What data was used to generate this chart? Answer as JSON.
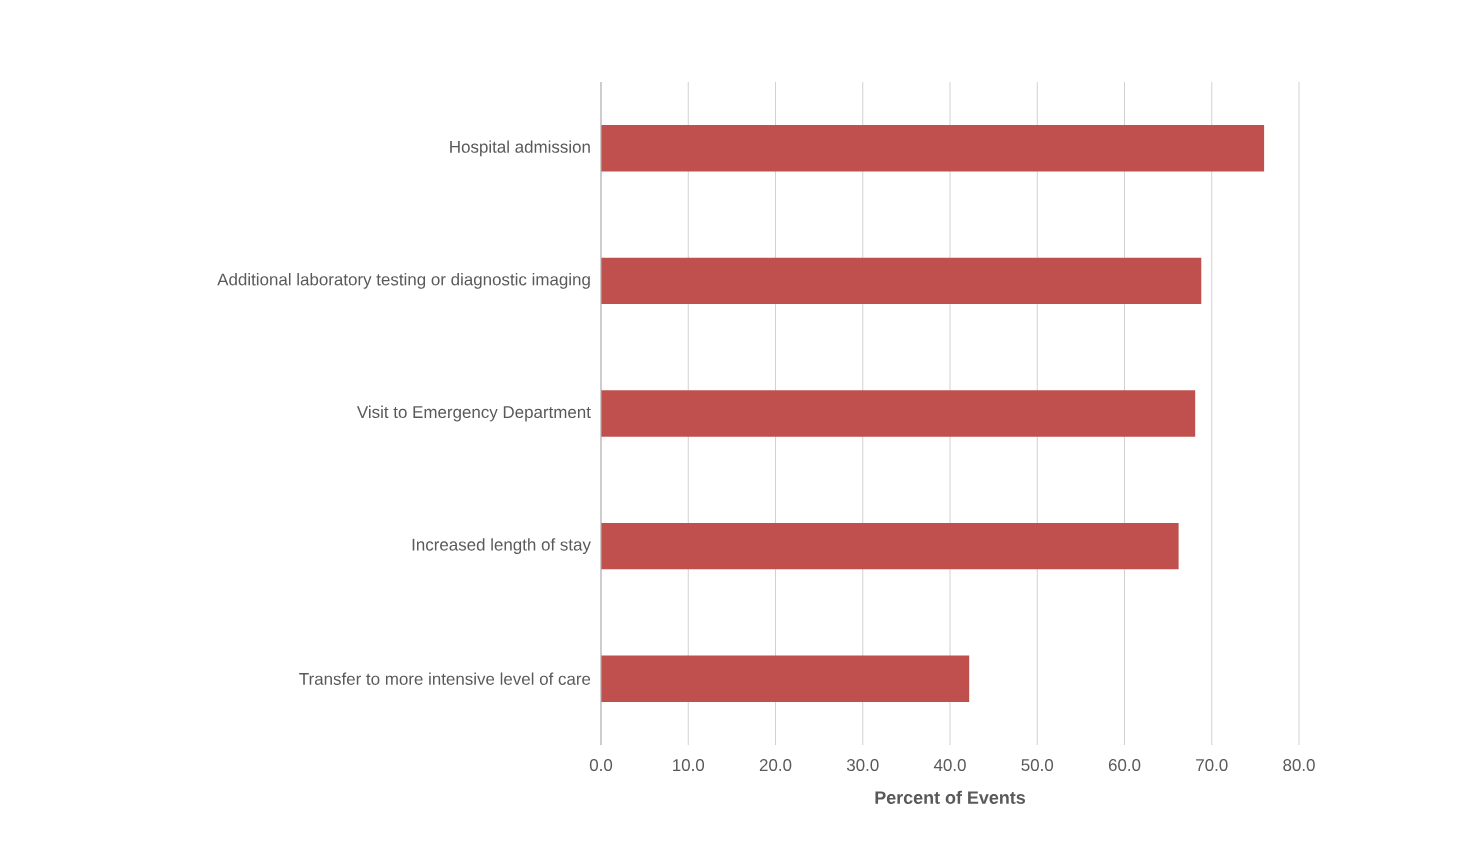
{
  "chart_data": {
    "type": "bar",
    "orientation": "horizontal",
    "xlabel": "Percent of Events",
    "categories": [
      "Hospital admission",
      "Additional laboratory testing or diagnostic imaging",
      "Visit to Emergency Department",
      "Increased length of stay",
      "Transfer to more intensive level of care"
    ],
    "values": [
      76.0,
      68.8,
      68.1,
      66.2,
      42.2
    ],
    "color": "#c0504d",
    "xlim": [
      0,
      80
    ],
    "xticks": [
      {
        "value": 0,
        "label": "0.0"
      },
      {
        "value": 10,
        "label": "10.0"
      },
      {
        "value": 20,
        "label": "20.0"
      },
      {
        "value": 30,
        "label": "30.0"
      },
      {
        "value": 40,
        "label": "40.0"
      },
      {
        "value": 50,
        "label": "50.0"
      },
      {
        "value": 60,
        "label": "60.0"
      },
      {
        "value": 70,
        "label": "70.0"
      },
      {
        "value": 80,
        "label": "80.0"
      }
    ],
    "grid": "x"
  }
}
